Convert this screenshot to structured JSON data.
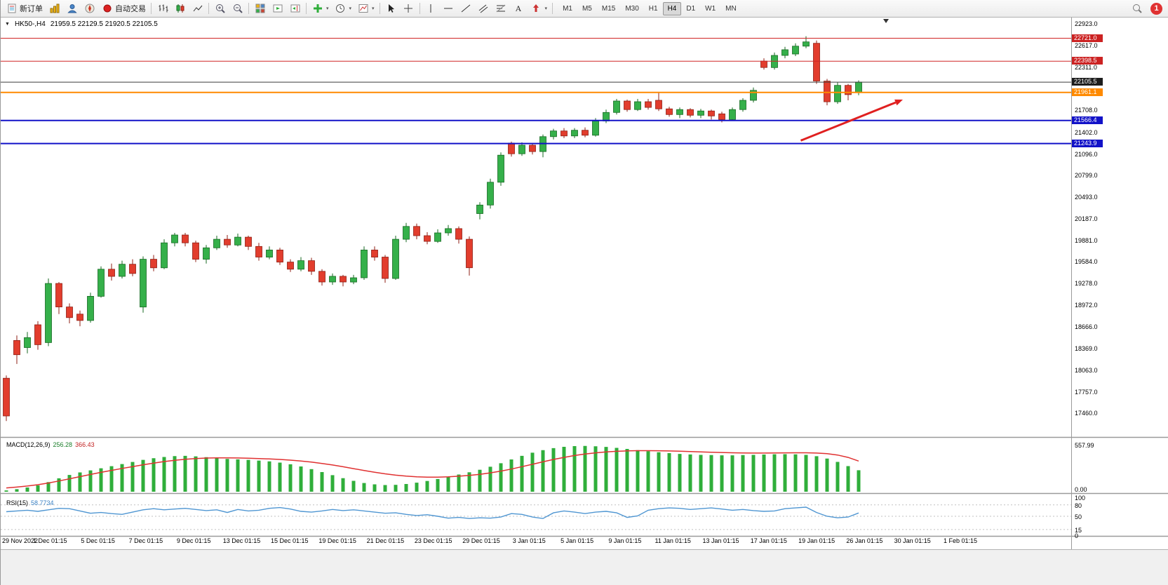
{
  "toolbar": {
    "new_order_label": "新订单",
    "auto_trading_label": "自动交易",
    "timeframes": [
      "M1",
      "M5",
      "M15",
      "M30",
      "H1",
      "H4",
      "D1",
      "W1",
      "MN"
    ],
    "active_timeframe": "H4",
    "notification_count": "1"
  },
  "chart": {
    "symbol_period": "HK50-,H4",
    "ohlc_text": "21959.5 22129.5 21920.5 22105.5",
    "hlines": [
      {
        "label": "22721.0",
        "price": 22721.0,
        "color": "#d02525",
        "box": "#cc2222",
        "width": 1
      },
      {
        "label": "22398.5",
        "price": 22398.5,
        "color": "#d02525",
        "box": "#cc2222",
        "width": 1
      },
      {
        "label": "22105.5",
        "price": 22105.5,
        "color": "#3c3c3c",
        "box": "#1d1d1d",
        "width": 1
      },
      {
        "label": "21961.1",
        "price": 21961.1,
        "color": "#ff8a00",
        "box": "#ff8a00",
        "width": 2
      },
      {
        "label": "21566.4",
        "price": 21566.4,
        "color": "#1212c8",
        "box": "#1212c8",
        "width": 2
      },
      {
        "label": "21243.9",
        "price": 21243.9,
        "color": "#1212c8",
        "box": "#1212c8",
        "width": 2
      }
    ],
    "arrow": {
      "from_bar": 75.5,
      "from_price": 21285,
      "to_bar": 85.2,
      "to_price": 21860,
      "color": "#e02020"
    }
  },
  "chart_data": {
    "type": "candlestick",
    "symbol": "HK50-",
    "timeframe": "H4",
    "title": "HK50-,H4 21959.5 22129.5 21920.5 22105.5",
    "y_axis_labels": [
      "22923.0",
      "22617.0",
      "22311.0",
      "21708.0",
      "21402.0",
      "21096.0",
      "20799.0",
      "20493.0",
      "20187.0",
      "19881.0",
      "19584.0",
      "19278.0",
      "18972.0",
      "18666.0",
      "18369.0",
      "18063.0",
      "17757.0",
      "17460.0"
    ],
    "x_labels": [
      "29 Nov 2022",
      "1 Dec 01:15",
      "5 Dec 01:15",
      "7 Dec 01:15",
      "9 Dec 01:15",
      "13 Dec 01:15",
      "15 Dec 01:15",
      "19 Dec 01:15",
      "21 Dec 01:15",
      "23 Dec 01:15",
      "29 Dec 01:15",
      "3 Jan 01:15",
      "5 Jan 01:15",
      "9 Jan 01:15",
      "11 Jan 01:15",
      "13 Jan 01:15",
      "17 Jan 01:15",
      "19 Jan 01:15",
      "26 Jan 01:15",
      "30 Jan 01:15",
      "1 Feb 01:15"
    ],
    "colors": {
      "bull": "#35b04a",
      "bull_stroke": "#176a22",
      "bear": "#e23d2d",
      "bear_stroke": "#8f1f14",
      "macd_hist": "#2fae3a",
      "macd_signal": "#e03131",
      "rsi": "#4f96d2",
      "level_dash": "#c0c0c0"
    },
    "candles_ohlc": [
      [
        17950,
        17990,
        17350,
        17420
      ],
      [
        18480,
        18550,
        18150,
        18280
      ],
      [
        18380,
        18600,
        18300,
        18520
      ],
      [
        18700,
        18750,
        18350,
        18420
      ],
      [
        18450,
        19350,
        18400,
        19280
      ],
      [
        19280,
        19300,
        18850,
        18950
      ],
      [
        18950,
        19000,
        18720,
        18800
      ],
      [
        18850,
        18900,
        18680,
        18760
      ],
      [
        18760,
        19150,
        18730,
        19100
      ],
      [
        19100,
        19520,
        19080,
        19480
      ],
      [
        19480,
        19560,
        19320,
        19380
      ],
      [
        19380,
        19600,
        19350,
        19550
      ],
      [
        19550,
        19620,
        19380,
        19420
      ],
      [
        18950,
        19660,
        18870,
        19620
      ],
      [
        19620,
        19680,
        19450,
        19500
      ],
      [
        19500,
        19900,
        19480,
        19850
      ],
      [
        19850,
        19990,
        19800,
        19960
      ],
      [
        19960,
        19990,
        19800,
        19850
      ],
      [
        19850,
        19880,
        19580,
        19620
      ],
      [
        19620,
        19820,
        19560,
        19780
      ],
      [
        19780,
        19950,
        19750,
        19900
      ],
      [
        19900,
        19960,
        19780,
        19820
      ],
      [
        19820,
        19980,
        19800,
        19930
      ],
      [
        19930,
        19950,
        19750,
        19800
      ],
      [
        19800,
        19850,
        19600,
        19650
      ],
      [
        19650,
        19800,
        19620,
        19750
      ],
      [
        19750,
        19780,
        19540,
        19580
      ],
      [
        19580,
        19620,
        19440,
        19480
      ],
      [
        19480,
        19650,
        19450,
        19600
      ],
      [
        19600,
        19640,
        19400,
        19450
      ],
      [
        19450,
        19480,
        19250,
        19300
      ],
      [
        19300,
        19420,
        19260,
        19380
      ],
      [
        19380,
        19400,
        19240,
        19300
      ],
      [
        19300,
        19400,
        19270,
        19360
      ],
      [
        19360,
        19800,
        19330,
        19750
      ],
      [
        19750,
        19800,
        19600,
        19650
      ],
      [
        19650,
        19680,
        19290,
        19350
      ],
      [
        19350,
        19950,
        19330,
        19900
      ],
      [
        19900,
        20130,
        19860,
        20080
      ],
      [
        20080,
        20120,
        19900,
        19950
      ],
      [
        19950,
        20000,
        19830,
        19870
      ],
      [
        19870,
        20040,
        19850,
        19990
      ],
      [
        19990,
        20100,
        19950,
        20050
      ],
      [
        20050,
        20080,
        19840,
        19900
      ],
      [
        19900,
        19940,
        19390,
        19500
      ],
      [
        20260,
        20420,
        20180,
        20380
      ],
      [
        20380,
        20750,
        20330,
        20700
      ],
      [
        20700,
        21120,
        20650,
        21080
      ],
      [
        21250,
        21270,
        21060,
        21100
      ],
      [
        21100,
        21260,
        21070,
        21220
      ],
      [
        21220,
        21250,
        21090,
        21130
      ],
      [
        21130,
        21370,
        21050,
        21340
      ],
      [
        21340,
        21450,
        21300,
        21420
      ],
      [
        21420,
        21460,
        21320,
        21350
      ],
      [
        21350,
        21460,
        21320,
        21430
      ],
      [
        21430,
        21470,
        21330,
        21360
      ],
      [
        21360,
        21600,
        21340,
        21560
      ],
      [
        21560,
        21720,
        21530,
        21680
      ],
      [
        21680,
        21870,
        21650,
        21840
      ],
      [
        21840,
        21860,
        21690,
        21720
      ],
      [
        21720,
        21870,
        21700,
        21830
      ],
      [
        21830,
        21870,
        21720,
        21750
      ],
      [
        21850,
        21960,
        21700,
        21730
      ],
      [
        21730,
        21760,
        21620,
        21650
      ],
      [
        21650,
        21750,
        21600,
        21720
      ],
      [
        21720,
        21740,
        21610,
        21640
      ],
      [
        21640,
        21730,
        21600,
        21700
      ],
      [
        21700,
        21720,
        21580,
        21630
      ],
      [
        21660,
        21690,
        21540,
        21580
      ],
      [
        21580,
        21750,
        21560,
        21720
      ],
      [
        21720,
        21880,
        21690,
        21850
      ],
      [
        21850,
        22030,
        21820,
        21990
      ],
      [
        22400,
        22440,
        22280,
        22310
      ],
      [
        22310,
        22520,
        22280,
        22480
      ],
      [
        22480,
        22600,
        22440,
        22560
      ],
      [
        22500,
        22650,
        22470,
        22610
      ],
      [
        22610,
        22750,
        22580,
        22670
      ],
      [
        22650,
        22690,
        22080,
        22120
      ],
      [
        22120,
        22150,
        21780,
        21830
      ],
      [
        21830,
        22100,
        21800,
        22060
      ],
      [
        22060,
        22080,
        21850,
        21930
      ],
      [
        21959.5,
        22129.5,
        21920.5,
        22105.5
      ]
    ],
    "macd": {
      "label": "MACD(12,26,9)",
      "value_main": "256.28",
      "value_signal": "366.43",
      "axis_max": "557.99",
      "axis_min": "0.00",
      "histogram": [
        15,
        30,
        50,
        75,
        115,
        160,
        200,
        230,
        255,
        280,
        305,
        330,
        355,
        380,
        400,
        415,
        425,
        428,
        422,
        412,
        402,
        392,
        386,
        380,
        372,
        362,
        348,
        328,
        302,
        270,
        235,
        198,
        162,
        130,
        104,
        88,
        80,
        82,
        92,
        108,
        128,
        152,
        178,
        205,
        232,
        262,
        298,
        340,
        385,
        428,
        466,
        497,
        520,
        536,
        545,
        547,
        543,
        535,
        524,
        511,
        497,
        484,
        472,
        461,
        452,
        445,
        440,
        437,
        435,
        435,
        437,
        440,
        444,
        447,
        448,
        446,
        440,
        424,
        396,
        356,
        306,
        256.28
      ],
      "signal": [
        45,
        55,
        68,
        84,
        104,
        128,
        154,
        180,
        206,
        231,
        255,
        278,
        300,
        322,
        342,
        360,
        375,
        387,
        396,
        402,
        405,
        405,
        403,
        400,
        396,
        391,
        385,
        377,
        367,
        354,
        338,
        319,
        298,
        276,
        254,
        233,
        214,
        198,
        186,
        178,
        174,
        174,
        178,
        185,
        195,
        208,
        225,
        246,
        271,
        299,
        328,
        357,
        385,
        410,
        432,
        450,
        464,
        475,
        483,
        488,
        490,
        490,
        489,
        487,
        484,
        480,
        476,
        472,
        468,
        465,
        463,
        462,
        462,
        463,
        464,
        465,
        465,
        462,
        454,
        438,
        410,
        366.43
      ]
    },
    "rsi": {
      "label": "RSI(15)",
      "value": "58.7734",
      "levels": [
        "100",
        "80",
        "50",
        "15",
        "0"
      ],
      "dashed_levels": [
        80,
        50,
        15
      ],
      "values": [
        62,
        64,
        66,
        63,
        67,
        71,
        70,
        64,
        58,
        60,
        57,
        55,
        61,
        67,
        70,
        67,
        69,
        71,
        68,
        65,
        67,
        60,
        68,
        64,
        66,
        71,
        73,
        69,
        63,
        61,
        64,
        68,
        65,
        67,
        64,
        61,
        58,
        59,
        55,
        52,
        54,
        50,
        45,
        47,
        44,
        46,
        45,
        48,
        57,
        55,
        48,
        44,
        59,
        64,
        61,
        57,
        61,
        63,
        59,
        47,
        51,
        66,
        70,
        72,
        71,
        68,
        70,
        72,
        69,
        66,
        68,
        65,
        63,
        64,
        70,
        72,
        74,
        60,
        50,
        46,
        48,
        58.77
      ]
    }
  }
}
